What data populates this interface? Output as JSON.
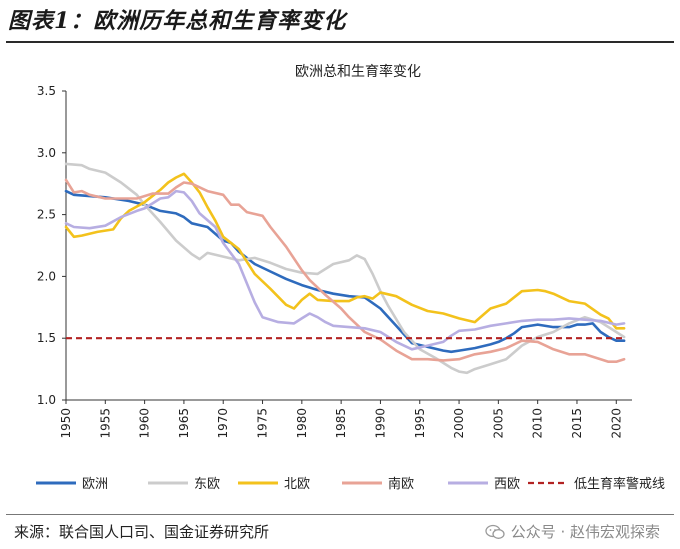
{
  "figure_title": "图表1：欧洲历年总和生育率变化",
  "source_text": "来源：联合国人口司、国金证券研究所",
  "watermark": {
    "icon": "wechat-icon",
    "text": "公众号 · 赵伟宏观探索"
  },
  "chart_data": {
    "type": "line",
    "title": "欧洲总和生育率变化",
    "xlabel": "",
    "ylabel": "",
    "xlim": [
      1950,
      2022
    ],
    "ylim": [
      1.0,
      3.5
    ],
    "x_ticks": [
      "1950",
      "1955",
      "1960",
      "1965",
      "1970",
      "1975",
      "1980",
      "1985",
      "1990",
      "1995",
      "2000",
      "2005",
      "2010",
      "2015",
      "2020"
    ],
    "y_ticks": [
      "1.0",
      "1.5",
      "2.0",
      "2.5",
      "3.0",
      "3.5"
    ],
    "grid": false,
    "legend_position": "bottom",
    "series": [
      {
        "name": "欧洲",
        "color": "#2e6bbd",
        "style": "solid",
        "points": [
          [
            1950,
            2.69
          ],
          [
            1951,
            2.66
          ],
          [
            1953,
            2.65
          ],
          [
            1955,
            2.64
          ],
          [
            1958,
            2.61
          ],
          [
            1960,
            2.58
          ],
          [
            1962,
            2.53
          ],
          [
            1964,
            2.51
          ],
          [
            1965,
            2.48
          ],
          [
            1966,
            2.43
          ],
          [
            1968,
            2.4
          ],
          [
            1970,
            2.29
          ],
          [
            1971,
            2.27
          ],
          [
            1972,
            2.2
          ],
          [
            1974,
            2.1
          ],
          [
            1976,
            2.04
          ],
          [
            1978,
            1.98
          ],
          [
            1980,
            1.93
          ],
          [
            1982,
            1.89
          ],
          [
            1984,
            1.86
          ],
          [
            1986,
            1.84
          ],
          [
            1988,
            1.83
          ],
          [
            1990,
            1.74
          ],
          [
            1992,
            1.6
          ],
          [
            1994,
            1.46
          ],
          [
            1996,
            1.43
          ],
          [
            1998,
            1.4
          ],
          [
            1999,
            1.39
          ],
          [
            2000,
            1.4
          ],
          [
            2002,
            1.42
          ],
          [
            2004,
            1.45
          ],
          [
            2005,
            1.47
          ],
          [
            2006,
            1.5
          ],
          [
            2007,
            1.54
          ],
          [
            2008,
            1.59
          ],
          [
            2010,
            1.61
          ],
          [
            2012,
            1.59
          ],
          [
            2014,
            1.59
          ],
          [
            2015,
            1.61
          ],
          [
            2016,
            1.61
          ],
          [
            2017,
            1.62
          ],
          [
            2018,
            1.55
          ],
          [
            2019,
            1.51
          ],
          [
            2020,
            1.48
          ],
          [
            2021,
            1.48
          ]
        ]
      },
      {
        "name": "东欧",
        "color": "#cccccc",
        "style": "solid",
        "points": [
          [
            1950,
            2.91
          ],
          [
            1952,
            2.9
          ],
          [
            1953,
            2.87
          ],
          [
            1955,
            2.84
          ],
          [
            1957,
            2.76
          ],
          [
            1959,
            2.66
          ],
          [
            1960,
            2.58
          ],
          [
            1962,
            2.44
          ],
          [
            1964,
            2.29
          ],
          [
            1966,
            2.18
          ],
          [
            1967,
            2.14
          ],
          [
            1968,
            2.19
          ],
          [
            1970,
            2.16
          ],
          [
            1972,
            2.13
          ],
          [
            1974,
            2.15
          ],
          [
            1976,
            2.11
          ],
          [
            1978,
            2.06
          ],
          [
            1980,
            2.03
          ],
          [
            1982,
            2.02
          ],
          [
            1984,
            2.1
          ],
          [
            1986,
            2.13
          ],
          [
            1987,
            2.17
          ],
          [
            1988,
            2.14
          ],
          [
            1989,
            2.02
          ],
          [
            1990,
            1.88
          ],
          [
            1991,
            1.76
          ],
          [
            1993,
            1.55
          ],
          [
            1995,
            1.41
          ],
          [
            1997,
            1.34
          ],
          [
            1999,
            1.26
          ],
          [
            2000,
            1.23
          ],
          [
            2001,
            1.22
          ],
          [
            2002,
            1.25
          ],
          [
            2004,
            1.29
          ],
          [
            2006,
            1.33
          ],
          [
            2008,
            1.44
          ],
          [
            2010,
            1.51
          ],
          [
            2012,
            1.55
          ],
          [
            2014,
            1.62
          ],
          [
            2016,
            1.67
          ],
          [
            2018,
            1.63
          ],
          [
            2020,
            1.55
          ],
          [
            2021,
            1.51
          ]
        ]
      },
      {
        "name": "北欧",
        "color": "#f3c21c",
        "style": "solid",
        "points": [
          [
            1950,
            2.4
          ],
          [
            1951,
            2.32
          ],
          [
            1952,
            2.33
          ],
          [
            1954,
            2.36
          ],
          [
            1956,
            2.38
          ],
          [
            1957,
            2.47
          ],
          [
            1958,
            2.53
          ],
          [
            1960,
            2.6
          ],
          [
            1962,
            2.7
          ],
          [
            1963,
            2.76
          ],
          [
            1964,
            2.8
          ],
          [
            1965,
            2.83
          ],
          [
            1966,
            2.76
          ],
          [
            1967,
            2.68
          ],
          [
            1968,
            2.56
          ],
          [
            1969,
            2.45
          ],
          [
            1970,
            2.32
          ],
          [
            1972,
            2.22
          ],
          [
            1973,
            2.12
          ],
          [
            1974,
            2.02
          ],
          [
            1976,
            1.9
          ],
          [
            1978,
            1.77
          ],
          [
            1979,
            1.74
          ],
          [
            1980,
            1.81
          ],
          [
            1981,
            1.86
          ],
          [
            1982,
            1.81
          ],
          [
            1984,
            1.8
          ],
          [
            1986,
            1.8
          ],
          [
            1987,
            1.83
          ],
          [
            1988,
            1.84
          ],
          [
            1989,
            1.82
          ],
          [
            1990,
            1.87
          ],
          [
            1992,
            1.84
          ],
          [
            1994,
            1.77
          ],
          [
            1996,
            1.72
          ],
          [
            1998,
            1.7
          ],
          [
            2000,
            1.66
          ],
          [
            2002,
            1.63
          ],
          [
            2004,
            1.74
          ],
          [
            2006,
            1.78
          ],
          [
            2008,
            1.88
          ],
          [
            2010,
            1.89
          ],
          [
            2011,
            1.88
          ],
          [
            2012,
            1.86
          ],
          [
            2014,
            1.8
          ],
          [
            2016,
            1.78
          ],
          [
            2018,
            1.69
          ],
          [
            2019,
            1.66
          ],
          [
            2020,
            1.58
          ],
          [
            2021,
            1.58
          ]
        ]
      },
      {
        "name": "南欧",
        "color": "#e8a396",
        "style": "solid",
        "points": [
          [
            1950,
            2.78
          ],
          [
            1951,
            2.68
          ],
          [
            1952,
            2.69
          ],
          [
            1953,
            2.66
          ],
          [
            1955,
            2.63
          ],
          [
            1957,
            2.63
          ],
          [
            1959,
            2.63
          ],
          [
            1961,
            2.67
          ],
          [
            1963,
            2.67
          ],
          [
            1964,
            2.72
          ],
          [
            1965,
            2.76
          ],
          [
            1966,
            2.75
          ],
          [
            1968,
            2.69
          ],
          [
            1970,
            2.66
          ],
          [
            1971,
            2.58
          ],
          [
            1972,
            2.58
          ],
          [
            1973,
            2.52
          ],
          [
            1975,
            2.49
          ],
          [
            1976,
            2.4
          ],
          [
            1978,
            2.24
          ],
          [
            1980,
            2.05
          ],
          [
            1981,
            1.97
          ],
          [
            1983,
            1.85
          ],
          [
            1985,
            1.74
          ],
          [
            1986,
            1.67
          ],
          [
            1988,
            1.55
          ],
          [
            1990,
            1.49
          ],
          [
            1992,
            1.4
          ],
          [
            1994,
            1.33
          ],
          [
            1996,
            1.33
          ],
          [
            1998,
            1.32
          ],
          [
            2000,
            1.33
          ],
          [
            2002,
            1.37
          ],
          [
            2004,
            1.39
          ],
          [
            2006,
            1.42
          ],
          [
            2008,
            1.48
          ],
          [
            2010,
            1.47
          ],
          [
            2011,
            1.44
          ],
          [
            2012,
            1.41
          ],
          [
            2014,
            1.37
          ],
          [
            2016,
            1.37
          ],
          [
            2018,
            1.33
          ],
          [
            2019,
            1.31
          ],
          [
            2020,
            1.31
          ],
          [
            2021,
            1.33
          ]
        ]
      },
      {
        "name": "西欧",
        "color": "#b7aee2",
        "style": "solid",
        "points": [
          [
            1950,
            2.43
          ],
          [
            1951,
            2.4
          ],
          [
            1953,
            2.39
          ],
          [
            1955,
            2.41
          ],
          [
            1957,
            2.48
          ],
          [
            1959,
            2.53
          ],
          [
            1960,
            2.55
          ],
          [
            1962,
            2.63
          ],
          [
            1963,
            2.64
          ],
          [
            1964,
            2.69
          ],
          [
            1965,
            2.68
          ],
          [
            1966,
            2.61
          ],
          [
            1967,
            2.51
          ],
          [
            1969,
            2.4
          ],
          [
            1970,
            2.27
          ],
          [
            1972,
            2.1
          ],
          [
            1974,
            1.79
          ],
          [
            1975,
            1.67
          ],
          [
            1977,
            1.63
          ],
          [
            1979,
            1.62
          ],
          [
            1980,
            1.66
          ],
          [
            1981,
            1.7
          ],
          [
            1982,
            1.67
          ],
          [
            1983,
            1.63
          ],
          [
            1984,
            1.6
          ],
          [
            1986,
            1.59
          ],
          [
            1988,
            1.58
          ],
          [
            1990,
            1.55
          ],
          [
            1992,
            1.47
          ],
          [
            1994,
            1.41
          ],
          [
            1996,
            1.44
          ],
          [
            1998,
            1.47
          ],
          [
            1999,
            1.52
          ],
          [
            2000,
            1.56
          ],
          [
            2002,
            1.57
          ],
          [
            2004,
            1.6
          ],
          [
            2006,
            1.62
          ],
          [
            2008,
            1.64
          ],
          [
            2010,
            1.65
          ],
          [
            2012,
            1.65
          ],
          [
            2014,
            1.66
          ],
          [
            2016,
            1.65
          ],
          [
            2018,
            1.64
          ],
          [
            2020,
            1.61
          ],
          [
            2021,
            1.62
          ]
        ]
      },
      {
        "name": "低生育率警戒线",
        "color": "#b22222",
        "style": "dashed",
        "points": [
          [
            1950,
            1.5
          ],
          [
            2021,
            1.5
          ]
        ]
      }
    ]
  }
}
